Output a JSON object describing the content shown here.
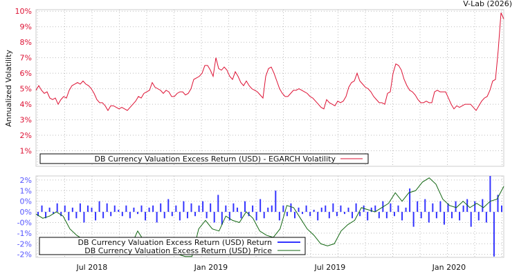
{
  "credit": "V-Lab (2026)",
  "chart_data": [
    {
      "type": "line",
      "title": "",
      "ylabel": "Annualized Volatility",
      "ylim": [
        0,
        10.1
      ],
      "yticks": [
        1,
        2,
        3,
        4,
        5,
        6,
        7,
        8,
        9,
        10
      ],
      "ytick_labels": [
        "1%",
        "2%",
        "3%",
        "4%",
        "5%",
        "6%",
        "7%",
        "8%",
        "9%",
        "10%"
      ],
      "xlim_decimal_year": [
        2018.265,
        2020.23
      ],
      "grid": true,
      "legend_position": "bottom-left",
      "series": [
        {
          "name": "DB Currency Valuation Excess Return (USD) - EGARCH Volatility",
          "color": "#dd1133",
          "values": [
            4.9,
            5.2,
            4.9,
            4.7,
            4.8,
            4.4,
            4.3,
            4.4,
            4.0,
            4.3,
            4.5,
            4.4,
            4.9,
            5.2,
            5.3,
            5.4,
            5.3,
            5.5,
            5.3,
            5.2,
            5.0,
            4.7,
            4.3,
            4.1,
            4.1,
            3.9,
            3.6,
            3.9,
            3.9,
            3.8,
            3.7,
            3.8,
            3.7,
            3.6,
            3.8,
            4.0,
            4.2,
            4.5,
            4.4,
            4.7,
            4.8,
            4.9,
            5.4,
            5.1,
            5.0,
            4.9,
            4.7,
            4.9,
            4.8,
            4.5,
            4.5,
            4.7,
            4.8,
            4.8,
            4.6,
            4.7,
            5.0,
            5.6,
            5.7,
            5.8,
            6.0,
            6.5,
            6.5,
            6.2,
            5.8,
            7.0,
            6.3,
            6.2,
            6.4,
            6.2,
            5.8,
            5.6,
            6.1,
            5.8,
            5.4,
            5.2,
            5.5,
            5.2,
            5.0,
            4.9,
            4.8,
            4.6,
            4.4,
            5.8,
            6.3,
            6.4,
            6.0,
            5.5,
            5.0,
            4.7,
            4.5,
            4.5,
            4.7,
            4.9,
            4.9,
            5.0,
            4.9,
            4.8,
            4.7,
            4.5,
            4.4,
            4.2,
            4.0,
            3.8,
            3.7,
            4.3,
            4.1,
            4.0,
            3.9,
            4.2,
            4.1,
            4.2,
            4.5,
            5.1,
            5.4,
            5.5,
            6.0,
            5.5,
            5.3,
            5.1,
            5.0,
            4.8,
            4.5,
            4.3,
            4.1,
            4.1,
            4.0,
            4.7,
            4.8,
            6.0,
            6.6,
            6.5,
            6.2,
            5.6,
            5.2,
            4.9,
            4.8,
            4.6,
            4.3,
            4.1,
            4.1,
            4.2,
            4.1,
            4.1,
            4.8,
            4.9,
            4.8,
            4.8,
            4.8,
            4.4,
            4.0,
            3.7,
            3.9,
            3.8,
            3.9,
            4.0,
            4.0,
            4.0,
            3.8,
            3.6,
            3.9,
            4.2,
            4.4,
            4.5,
            4.9,
            5.5,
            5.6,
            7.5,
            9.9,
            9.5
          ]
        }
      ]
    },
    {
      "type": "bar+line",
      "ylim": [
        -2.14,
        1.69
      ],
      "yticks": [
        1.5,
        1.0,
        0.5,
        0,
        -0.5,
        -1.0,
        -1.5,
        -2.0
      ],
      "ytick_labels": [
        "2%",
        "1%",
        "0%",
        "0%",
        "-0%",
        "-1%",
        "-2%",
        "-2%"
      ],
      "xlim_decimal_year": [
        2018.265,
        2020.23
      ],
      "xticks": [
        2018.5,
        2019.0,
        2019.5,
        2020.0
      ],
      "xtick_labels": [
        "Jul 2018",
        "Jan 2019",
        "Jul 2019",
        "Jan 2020"
      ],
      "grid": true,
      "legend_position": "bottom-left",
      "series": [
        {
          "name": "DB Currency Valuation Excess Return (USD) Return",
          "color": "#3333ff",
          "type": "bar",
          "values": [
            -0.2,
            0.3,
            -0.3,
            0.2,
            -0.1,
            0.4,
            -0.2,
            0.3,
            -0.4,
            0.2,
            -0.3,
            0.4,
            -0.5,
            0.3,
            0.2,
            -0.4,
            0.5,
            -0.3,
            0.4,
            -0.2,
            0.3,
            0.1,
            -0.2,
            0.3,
            -0.3,
            0.2,
            -0.1,
            0.3,
            -0.4,
            0.2,
            0.3,
            -0.5,
            0.4,
            -0.3,
            0.6,
            -0.2,
            0.3,
            -0.4,
            0.5,
            -0.3,
            0.4,
            -0.2,
            0.3,
            0.5,
            -0.3,
            0.4,
            -0.5,
            0.8,
            -0.6,
            0.3,
            -0.4,
            0.4,
            0.2,
            -0.3,
            0.5,
            -0.2,
            0.3,
            -0.4,
            0.6,
            -0.3,
            0.2,
            0.3,
            1.0,
            -0.4,
            0.3,
            -0.2,
            0.4,
            -0.3,
            0.2,
            -0.1,
            0.3,
            -0.2,
            0.1,
            -0.4,
            0.2,
            0.3,
            -0.3,
            0.4,
            -0.2,
            0.3,
            -0.1,
            0.2,
            -0.3,
            0.4,
            -0.2,
            0.3,
            -0.4,
            0.2,
            0.3,
            -0.3,
            0.5,
            -0.3,
            0.4,
            -0.2,
            0.3,
            -0.4,
            0.2,
            1.1,
            -0.7,
            0.5,
            -0.3,
            0.6,
            -0.5,
            0.4,
            -0.3,
            0.5,
            -0.6,
            0.4,
            -0.3,
            0.5,
            -0.4,
            0.3,
            0.6,
            -0.7,
            0.5,
            -0.4,
            0.6,
            -0.5,
            1.7,
            -2.1,
            0.8,
            0.3
          ]
        },
        {
          "name": "DB Currency Valuation Excess Return (USD) Price",
          "color": "#116611",
          "type": "line",
          "values": [
            -0.1,
            -0.3,
            -0.2,
            0.0,
            -0.2,
            -0.8,
            -1.1,
            -1.3,
            -1.2,
            -1.3,
            -1.5,
            -1.8,
            -1.9,
            -2.0,
            -1.6,
            -0.9,
            -1.4,
            -1.6,
            -1.3,
            -1.7,
            -1.9,
            -2.0,
            -2.1,
            -2.1,
            -0.8,
            -0.4,
            -0.8,
            -0.9,
            -0.2,
            -0.4,
            -0.5,
            0.0,
            -0.3,
            -0.9,
            -1.1,
            -1.2,
            -0.8,
            0.3,
            0.2,
            -0.3,
            -0.8,
            -1.1,
            -1.5,
            -1.6,
            -1.5,
            -0.9,
            -0.6,
            -0.4,
            0.2,
            0.1,
            0.0,
            0.2,
            0.4,
            0.9,
            0.5,
            0.9,
            1.0,
            1.4,
            1.6,
            1.3,
            0.6,
            0.3,
            0.2,
            0.5,
            0.2,
            0.4,
            0.2,
            0.5,
            0.6,
            1.2
          ]
        }
      ]
    }
  ]
}
